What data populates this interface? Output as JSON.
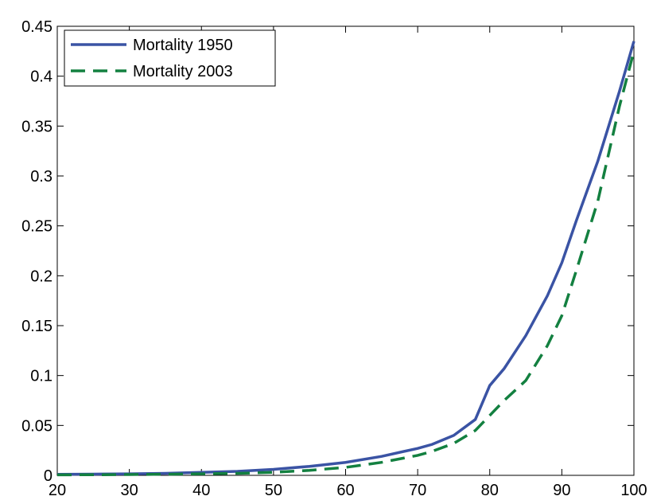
{
  "chart_data": {
    "type": "line",
    "x": [
      20,
      25,
      30,
      35,
      40,
      45,
      50,
      55,
      60,
      65,
      70,
      72,
      75,
      78,
      80,
      82,
      85,
      88,
      90,
      92,
      95,
      98,
      100
    ],
    "series": [
      {
        "name": "Mortality 1950",
        "color": "#3a53a4",
        "dash": "solid",
        "values": [
          0.001,
          0.0012,
          0.0015,
          0.002,
          0.003,
          0.004,
          0.006,
          0.009,
          0.013,
          0.019,
          0.027,
          0.031,
          0.04,
          0.056,
          0.09,
          0.107,
          0.14,
          0.18,
          0.213,
          0.255,
          0.315,
          0.385,
          0.435
        ]
      },
      {
        "name": "Mortality 2003",
        "color": "#138040",
        "dash": "dashed",
        "values": [
          0.0005,
          0.0006,
          0.0008,
          0.0011,
          0.0015,
          0.002,
          0.003,
          0.005,
          0.008,
          0.013,
          0.02,
          0.024,
          0.032,
          0.045,
          0.06,
          0.075,
          0.095,
          0.13,
          0.16,
          0.205,
          0.275,
          0.37,
          0.425
        ]
      }
    ],
    "xlim": [
      20,
      100
    ],
    "xticks": [
      20,
      30,
      40,
      50,
      60,
      70,
      80,
      90,
      100
    ],
    "ylim": [
      0,
      0.45
    ],
    "yticks": [
      0,
      0.05,
      0.1,
      0.15,
      0.2,
      0.25,
      0.3,
      0.35,
      0.4,
      0.45
    ],
    "legend": "upper left"
  }
}
